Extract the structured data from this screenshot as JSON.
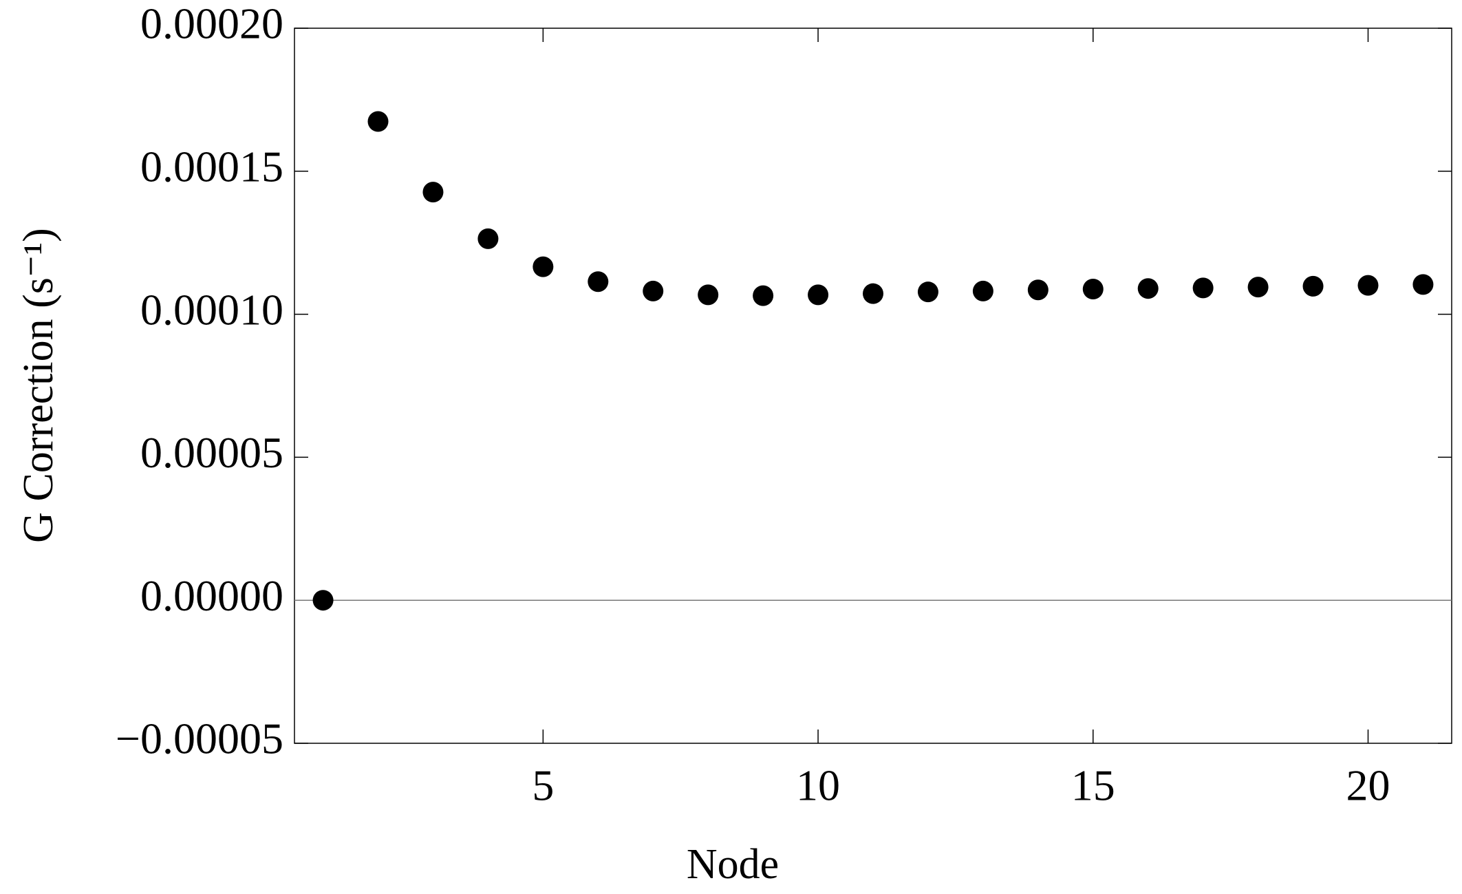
{
  "chart_data": {
    "type": "scatter",
    "x_label": "Node",
    "y_label": "G Correction (s⁻¹)",
    "series": [
      {
        "color": "#000000",
        "x": [
          1,
          2,
          3,
          4,
          5,
          6,
          7,
          8,
          9,
          10,
          11,
          12,
          13,
          14,
          15,
          16,
          17,
          18,
          19,
          20,
          21
        ],
        "values": [
          0,
          0.0001674,
          0.0001427,
          0.0001264,
          0.0001166,
          0.0001114,
          0.0001081,
          0.0001068,
          0.0001065,
          0.0001068,
          0.0001072,
          0.0001078,
          0.0001081,
          0.0001085,
          0.0001088,
          0.000109,
          0.0001092,
          0.0001095,
          0.0001098,
          0.0001101,
          0.0001104
        ]
      }
    ],
    "xlim": [
      0.48,
      21.52
    ],
    "xticks": [
      5,
      10,
      15,
      20
    ],
    "ylim": [
      -5e-05,
      0.0002
    ],
    "yticks": [
      {
        "value": -5e-05,
        "label": "−0.00005"
      },
      {
        "value": 0,
        "label": "0.00000"
      },
      {
        "value": 5e-05,
        "label": "0.00005"
      },
      {
        "value": 0.0001,
        "label": "0.00010"
      },
      {
        "value": 0.00015,
        "label": "0.00015"
      },
      {
        "value": 0.0002,
        "label": "0.00020"
      }
    ]
  }
}
